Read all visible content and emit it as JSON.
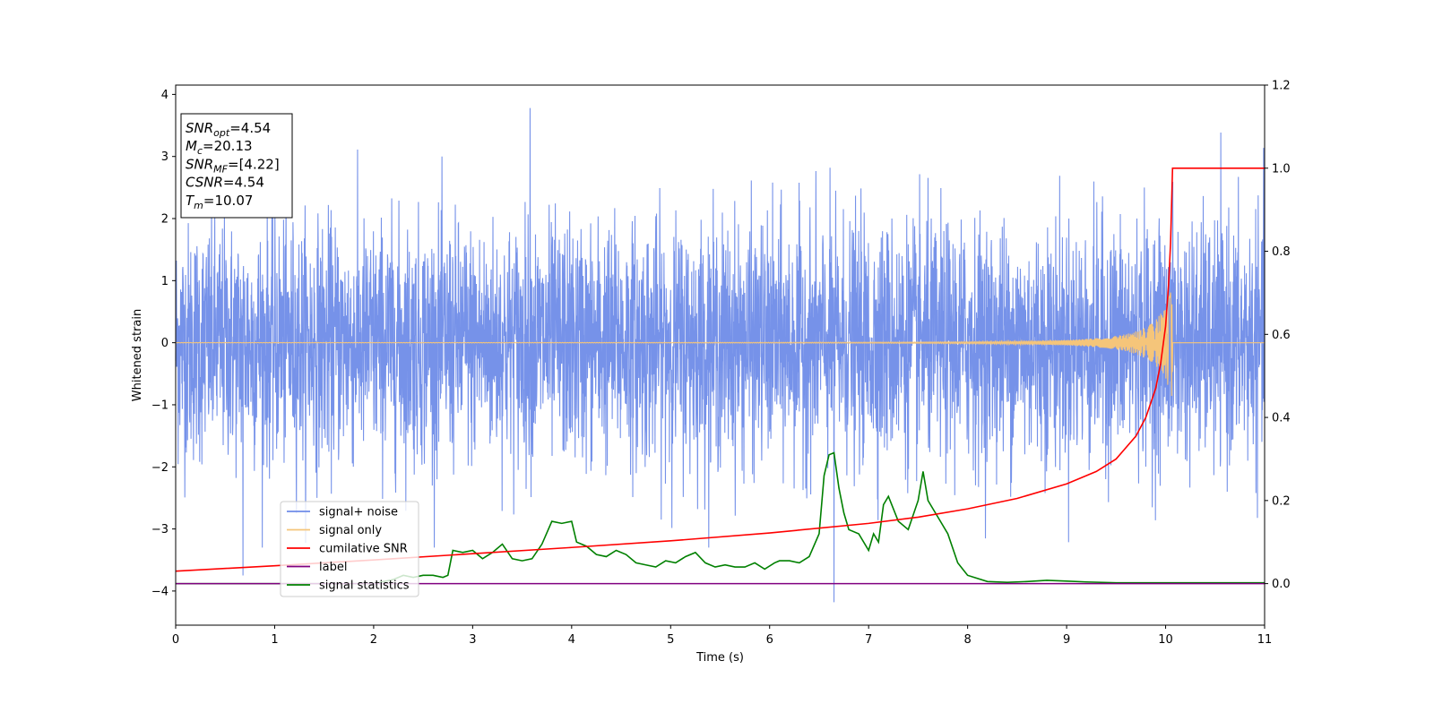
{
  "chart_data": {
    "type": "line",
    "xlabel": "Time (s)",
    "ylabel": "Whitened strain",
    "xlim": [
      0,
      11
    ],
    "ylim_left": [
      -4.55,
      4.15
    ],
    "ylim_right": [
      -0.1,
      1.2
    ],
    "x_ticks": [
      0,
      1,
      2,
      3,
      4,
      5,
      6,
      7,
      8,
      9,
      10,
      11
    ],
    "x_tick_labels": [
      "0",
      "1",
      "2",
      "3",
      "4",
      "5",
      "6",
      "7",
      "8",
      "9",
      "10",
      "11"
    ],
    "y_left_ticks": [
      -4,
      -3,
      -2,
      -1,
      0,
      1,
      2,
      3,
      4
    ],
    "y_left_tick_labels": [
      "−4",
      "−3",
      "−2",
      "−1",
      "0",
      "1",
      "2",
      "3",
      "4"
    ],
    "y_right_ticks": [
      0.0,
      0.2,
      0.4,
      0.6,
      0.8,
      1.0,
      1.2
    ],
    "y_right_tick_labels": [
      "0.0",
      "0.2",
      "0.4",
      "0.6",
      "0.8",
      "1.0",
      "1.2"
    ],
    "legend_position": "lower-left",
    "info_box": {
      "position": "top-left",
      "lines": [
        {
          "main": "SNR",
          "sub": "opt",
          "value": "=4.54"
        },
        {
          "main": "M",
          "sub": "c",
          "value": "=20.13"
        },
        {
          "main": "SNR",
          "sub": "MF",
          "value": "=[4.22]"
        },
        {
          "main": "CSNR",
          "sub": "",
          "value": "=4.54"
        },
        {
          "main": "T",
          "sub": "m",
          "value": "=10.07"
        }
      ]
    },
    "series": [
      {
        "name": "signal+ noise",
        "color": "#6f8ce8",
        "axis": "left",
        "description_stats": {
          "noise_std": 0.95,
          "max": 3.78,
          "min": -4.18,
          "spike_min_x": 6.65
        }
      },
      {
        "name": "signal only",
        "color": "#f5c57a",
        "axis": "left",
        "merger_time": 10.07,
        "peak_amplitude": 0.9
      },
      {
        "name": "cumilative SNR",
        "color": "#ff0000",
        "axis": "right",
        "x": [
          0,
          1,
          2,
          3,
          4,
          5,
          6,
          7,
          7.5,
          8,
          8.5,
          9,
          9.3,
          9.5,
          9.7,
          9.8,
          9.9,
          9.95,
          10.0,
          10.03,
          10.05,
          10.07,
          11
        ],
        "values": [
          0.03,
          0.043,
          0.057,
          0.072,
          0.087,
          0.103,
          0.122,
          0.145,
          0.16,
          0.18,
          0.205,
          0.24,
          0.27,
          0.3,
          0.355,
          0.4,
          0.47,
          0.53,
          0.62,
          0.72,
          0.82,
          1.0,
          1.0
        ]
      },
      {
        "name": "label",
        "color": "#800080",
        "axis": "right",
        "x": [
          0,
          11
        ],
        "values": [
          0,
          0
        ]
      },
      {
        "name": "signal statistics",
        "color": "#008000",
        "axis": "right",
        "x": [
          0,
          0.5,
          1,
          1.5,
          2,
          2.1,
          2.2,
          2.3,
          2.4,
          2.5,
          2.6,
          2.7,
          2.75,
          2.8,
          2.9,
          3.0,
          3.1,
          3.2,
          3.3,
          3.4,
          3.5,
          3.6,
          3.7,
          3.8,
          3.9,
          4.0,
          4.05,
          4.15,
          4.25,
          4.35,
          4.45,
          4.55,
          4.65,
          4.75,
          4.85,
          4.95,
          5.05,
          5.15,
          5.25,
          5.35,
          5.45,
          5.55,
          5.65,
          5.75,
          5.85,
          5.95,
          6.05,
          6.1,
          6.2,
          6.3,
          6.4,
          6.5,
          6.55,
          6.6,
          6.65,
          6.7,
          6.75,
          6.8,
          6.9,
          7.0,
          7.05,
          7.1,
          7.15,
          7.2,
          7.3,
          7.4,
          7.5,
          7.55,
          7.6,
          7.7,
          7.8,
          7.9,
          8.0,
          8.2,
          8.4,
          8.6,
          8.8,
          9.0,
          9.2,
          9.5,
          10.0,
          10.5,
          11
        ],
        "values": [
          0.0,
          0.0,
          0.0,
          0.0,
          0.0,
          0.005,
          0.01,
          0.02,
          0.015,
          0.02,
          0.02,
          0.015,
          0.02,
          0.08,
          0.075,
          0.08,
          0.06,
          0.075,
          0.095,
          0.06,
          0.055,
          0.06,
          0.095,
          0.15,
          0.145,
          0.15,
          0.1,
          0.09,
          0.07,
          0.065,
          0.08,
          0.07,
          0.05,
          0.045,
          0.04,
          0.055,
          0.05,
          0.065,
          0.075,
          0.05,
          0.04,
          0.045,
          0.04,
          0.04,
          0.05,
          0.035,
          0.05,
          0.055,
          0.055,
          0.05,
          0.065,
          0.12,
          0.26,
          0.31,
          0.315,
          0.23,
          0.17,
          0.13,
          0.12,
          0.08,
          0.12,
          0.1,
          0.19,
          0.21,
          0.15,
          0.13,
          0.2,
          0.27,
          0.2,
          0.16,
          0.12,
          0.05,
          0.02,
          0.005,
          0.003,
          0.005,
          0.008,
          0.006,
          0.004,
          0.002,
          0.002,
          0.002,
          0.002
        ]
      }
    ]
  }
}
